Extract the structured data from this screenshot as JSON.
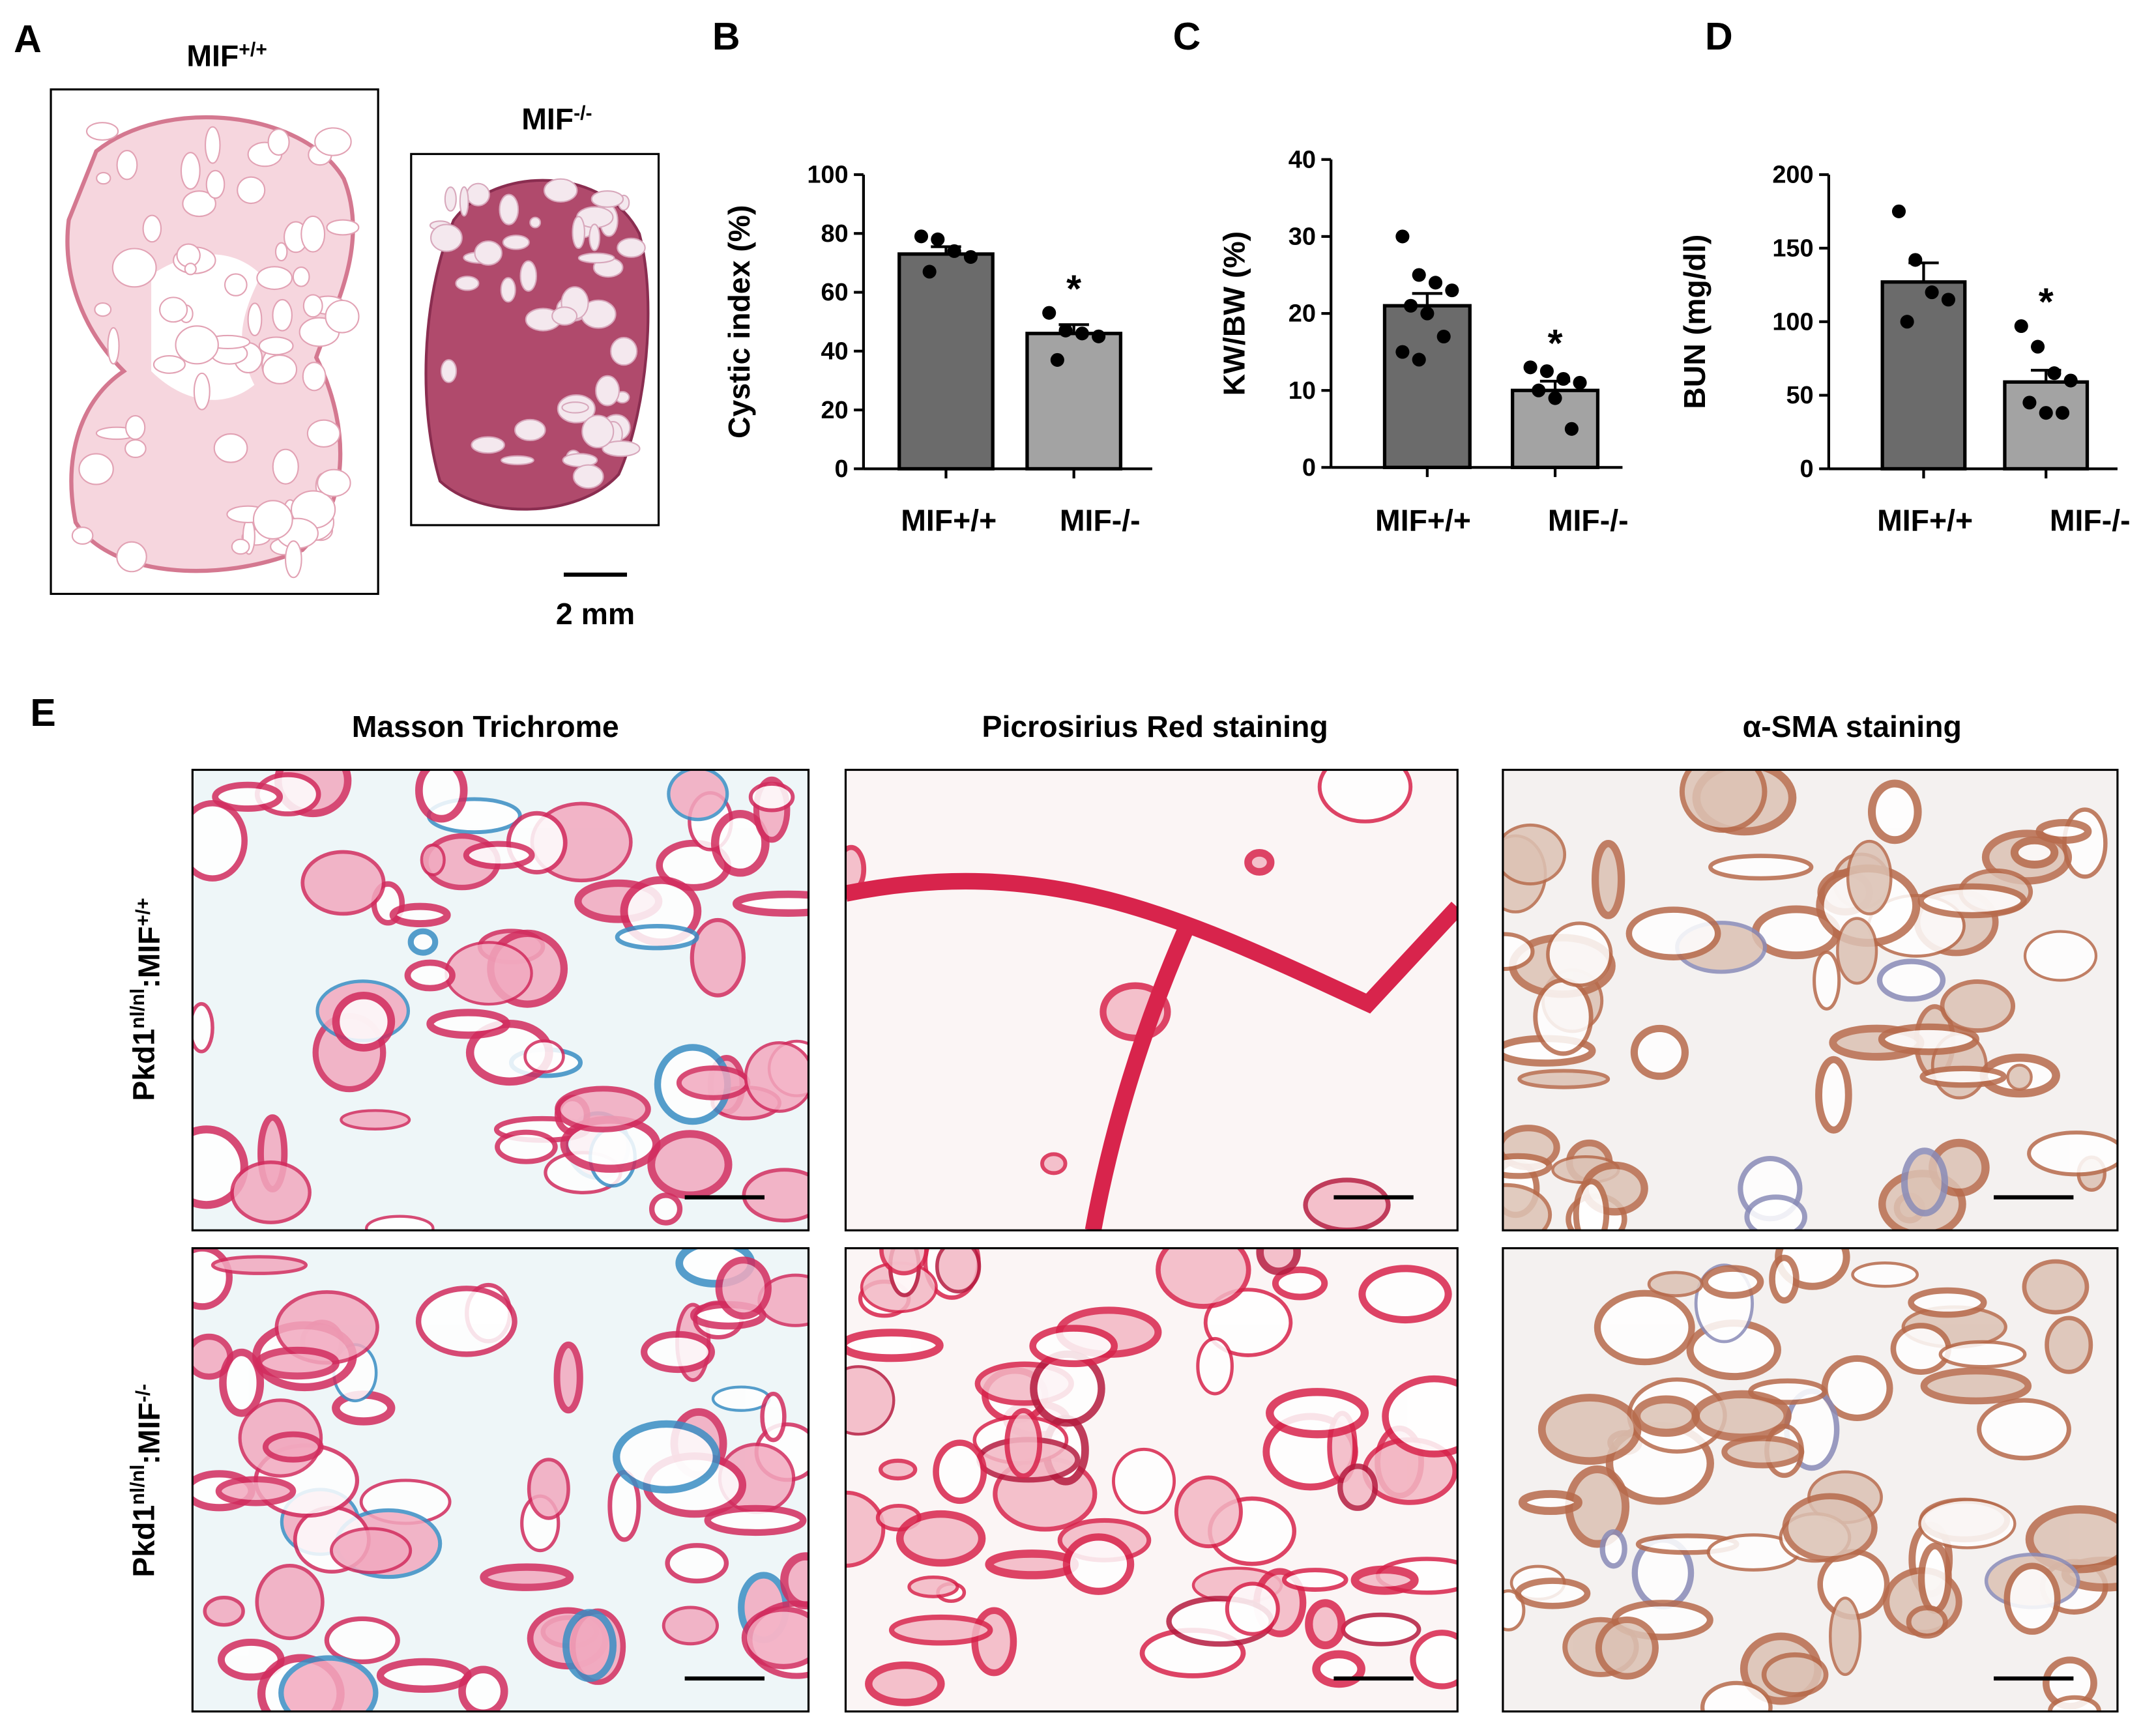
{
  "panel_labels": [
    "A",
    "B",
    "C",
    "D",
    "E"
  ],
  "panel_a": {
    "titles": [
      [
        "MIF",
        "+/+"
      ],
      [
        "MIF",
        "-/-"
      ]
    ],
    "scale_bar": "2 mm"
  },
  "chart_data": [
    {
      "type": "bar",
      "ylabel": "Cystic index (%)",
      "categories": [
        "MIF+/+",
        "MIF-/-"
      ],
      "values": [
        73,
        46
      ],
      "errors": [
        2.5,
        3
      ],
      "colors": [
        "#6b6b6b",
        "#a3a3a3"
      ],
      "points": [
        [
          79,
          78,
          74,
          72,
          67
        ],
        [
          53,
          47,
          46,
          45,
          37
        ]
      ],
      "significance": [
        {
          "category": "MIF-/-",
          "text": "*"
        }
      ],
      "ylim": [
        0,
        100
      ],
      "yticks": [
        0,
        20,
        40,
        60,
        80,
        100
      ]
    },
    {
      "type": "bar",
      "ylabel": "KW/BW (%)",
      "categories": [
        "MIF+/+",
        "MIF-/-"
      ],
      "values": [
        21,
        10
      ],
      "errors": [
        1.6,
        1.2
      ],
      "colors": [
        "#6b6b6b",
        "#a3a3a3"
      ],
      "points": [
        [
          30,
          25,
          24,
          23,
          21,
          20,
          17,
          15,
          14
        ],
        [
          13,
          12.5,
          11.5,
          11,
          10,
          9,
          5
        ]
      ],
      "significance": [
        {
          "category": "MIF-/-",
          "text": "*"
        }
      ],
      "ylim": [
        0,
        40
      ],
      "yticks": [
        0,
        10,
        20,
        30,
        40
      ]
    },
    {
      "type": "bar",
      "ylabel": "BUN (mg/dl)",
      "categories": [
        "MIF+/+",
        "MIF-/-"
      ],
      "values": [
        127,
        59
      ],
      "errors": [
        13,
        8
      ],
      "colors": [
        "#6b6b6b",
        "#a3a3a3"
      ],
      "points": [
        [
          175,
          142,
          120,
          115,
          100
        ],
        [
          97,
          83,
          65,
          60,
          45,
          38,
          38
        ]
      ],
      "significance": [
        {
          "category": "MIF-/-",
          "text": "*"
        }
      ],
      "ylim": [
        0,
        200
      ],
      "yticks": [
        0,
        50,
        100,
        150,
        200
      ]
    }
  ],
  "panel_e": {
    "columns": [
      "Masson Trichrome",
      "Picrosirius Red staining",
      "α-SMA staining"
    ],
    "rows": [
      [
        "Pkd1",
        "nl/nl",
        ":MIF",
        "+/+"
      ],
      [
        "Pkd1",
        "nl/nl",
        ":MIF",
        "-/-"
      ]
    ]
  }
}
